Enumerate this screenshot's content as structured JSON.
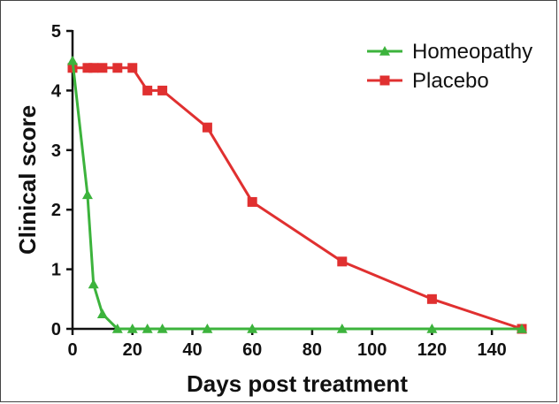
{
  "chart_data": {
    "type": "line",
    "xlabel": "Days post treatment",
    "ylabel": "Clinical score",
    "xlim": [
      0,
      150
    ],
    "ylim": [
      0,
      5
    ],
    "xticks": [
      0,
      20,
      40,
      60,
      80,
      100,
      120,
      140
    ],
    "yticks": [
      0,
      1,
      2,
      3,
      4,
      5
    ],
    "grid": false,
    "legend_position": "top-right",
    "series": [
      {
        "name": "Homeopathy",
        "color": "#3cb33c",
        "marker": "triangle",
        "points": [
          [
            0,
            4.5
          ],
          [
            5,
            2.25
          ],
          [
            7,
            0.75
          ],
          [
            10,
            0.25
          ],
          [
            15,
            0
          ],
          [
            20,
            0
          ],
          [
            25,
            0
          ],
          [
            30,
            0
          ],
          [
            45,
            0
          ],
          [
            60,
            0
          ],
          [
            90,
            0
          ],
          [
            120,
            0
          ],
          [
            150,
            0
          ]
        ]
      },
      {
        "name": "Placebo",
        "color": "#e03030",
        "marker": "square",
        "points": [
          [
            0,
            4.38
          ],
          [
            5,
            4.38
          ],
          [
            7,
            4.38
          ],
          [
            10,
            4.38
          ],
          [
            15,
            4.38
          ],
          [
            20,
            4.38
          ],
          [
            25,
            4.0
          ],
          [
            30,
            4.0
          ],
          [
            45,
            3.38
          ],
          [
            60,
            2.13
          ],
          [
            90,
            1.13
          ],
          [
            120,
            0.5
          ],
          [
            150,
            0
          ]
        ]
      }
    ]
  }
}
